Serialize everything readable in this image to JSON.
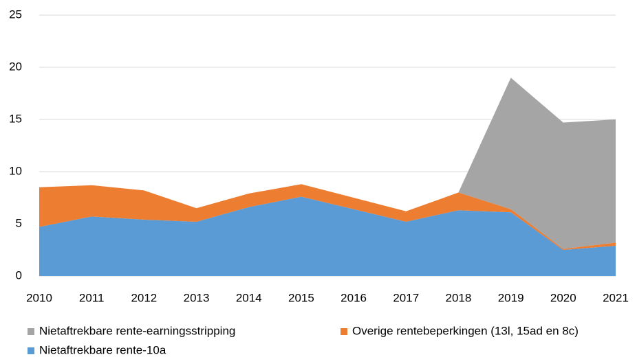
{
  "chart_data": {
    "type": "stacked-area",
    "x": [
      2010,
      2011,
      2012,
      2013,
      2014,
      2015,
      2016,
      2017,
      2018,
      2019,
      2020,
      2021
    ],
    "series": [
      {
        "name": "Nietaftrekbare rente-10a",
        "color": "#5b9bd5",
        "values": [
          4.7,
          5.7,
          5.4,
          5.2,
          6.6,
          7.6,
          6.4,
          5.2,
          6.3,
          6.1,
          2.5,
          2.9
        ]
      },
      {
        "name": "Overige rentebeperkingen (13l, 15ad en 8c)",
        "color": "#ed7d31",
        "values": [
          3.8,
          3.0,
          2.8,
          1.3,
          1.3,
          1.2,
          1.1,
          1.0,
          1.7,
          0.3,
          0.1,
          0.3
        ]
      },
      {
        "name": "Nietaftrekbare rente-earningsstripping",
        "color": "#a5a5a5",
        "values": [
          0,
          0,
          0,
          0,
          0,
          0,
          0,
          0,
          0,
          12.6,
          12.1,
          11.8
        ]
      }
    ],
    "xlim": [
      2010,
      2021
    ],
    "xticks": [
      2010,
      2011,
      2012,
      2013,
      2014,
      2015,
      2016,
      2017,
      2018,
      2019,
      2020,
      2021
    ],
    "ylim": [
      0,
      25
    ],
    "yticks": [
      0,
      5,
      10,
      15,
      20,
      25
    ],
    "grid": true
  }
}
